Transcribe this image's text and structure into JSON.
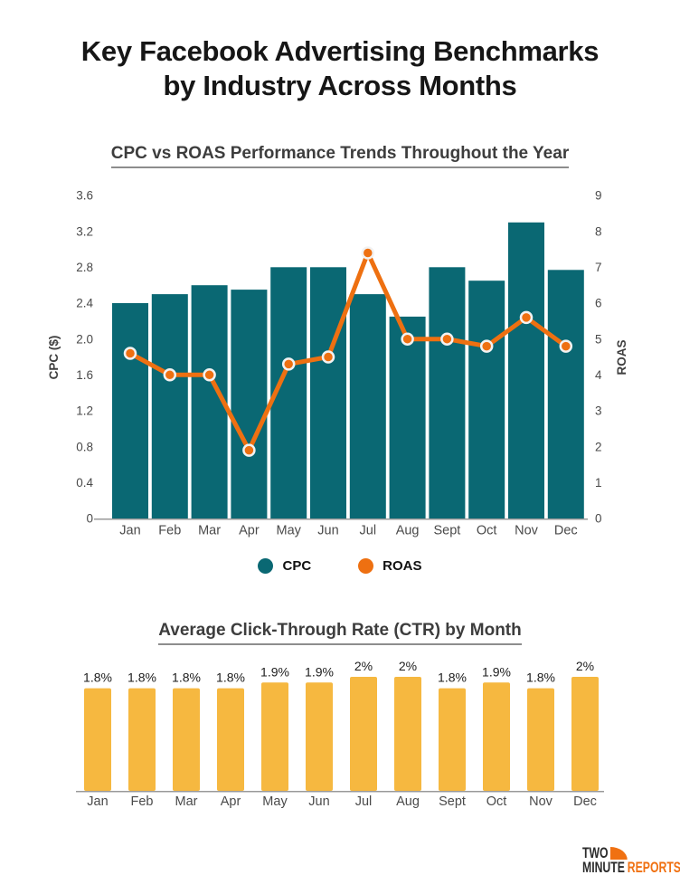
{
  "header": {
    "title_line1": "Key Facebook Advertising Benchmarks",
    "title_line2": "by Industry Across Months"
  },
  "colors": {
    "teal": "#0A6873",
    "orange": "#EE7011",
    "amber": "#F6B840",
    "axis_line": "#999999",
    "title_text": "#161616",
    "chart_title_text": "#3d3d3d",
    "tick_text": "#4a4a4a",
    "bar_label_text": "#1d1d1d",
    "marker_ring": "#f2f2f2",
    "logo_dark": "#2b2b2b",
    "logo_orange": "#F07112"
  },
  "chart_data": [
    {
      "type": "combo",
      "title": "CPC vs ROAS Performance Trends Throughout the Year",
      "categories": [
        "Jan",
        "Feb",
        "Mar",
        "Apr",
        "May",
        "Jun",
        "Jul",
        "Aug",
        "Sept",
        "Oct",
        "Nov",
        "Dec"
      ],
      "series": [
        {
          "name": "CPC",
          "type": "bar",
          "axis": "left",
          "values": [
            2.4,
            2.5,
            2.6,
            2.55,
            2.8,
            2.8,
            2.5,
            2.25,
            2.8,
            2.65,
            3.3,
            2.77
          ]
        },
        {
          "name": "ROAS",
          "type": "line",
          "axis": "right",
          "values": [
            4.6,
            4.0,
            4.0,
            1.9,
            4.3,
            4.5,
            7.4,
            5.0,
            5.0,
            4.8,
            5.6,
            4.8
          ]
        }
      ],
      "left_axis": {
        "label": "CPC ($)",
        "range": [
          0,
          3.6
        ],
        "ticks": [
          "0",
          "0.4",
          "0.8",
          "1.2",
          "1.6",
          "2.0",
          "2.4",
          "2.8",
          "3.2",
          "3.6"
        ]
      },
      "right_axis": {
        "label": "ROAS",
        "range": [
          0,
          9
        ],
        "ticks": [
          "0",
          "1",
          "2",
          "3",
          "4",
          "5",
          "6",
          "7",
          "8",
          "9"
        ]
      },
      "grid": false,
      "legend_position": "bottom"
    },
    {
      "type": "bar",
      "title": "Average Click-Through Rate (CTR) by Month",
      "categories": [
        "Jan",
        "Feb",
        "Mar",
        "Apr",
        "May",
        "Jun",
        "Jul",
        "Aug",
        "Sept",
        "Oct",
        "Nov",
        "Dec"
      ],
      "values": [
        1.8,
        1.8,
        1.8,
        1.8,
        1.9,
        1.9,
        2,
        2,
        1.8,
        1.9,
        1.8,
        2
      ],
      "labels": [
        "1.8%",
        "1.8%",
        "1.8%",
        "1.8%",
        "1.9%",
        "1.9%",
        "2%",
        "2%",
        "1.8%",
        "1.9%",
        "1.8%",
        "2%"
      ],
      "xlabel": "",
      "ylabel": "",
      "ylim": [
        0,
        2.2
      ],
      "grid": false
    }
  ],
  "logo": {
    "word1": "TWO",
    "word2": "MINUTE",
    "word3": "REPORTS"
  }
}
